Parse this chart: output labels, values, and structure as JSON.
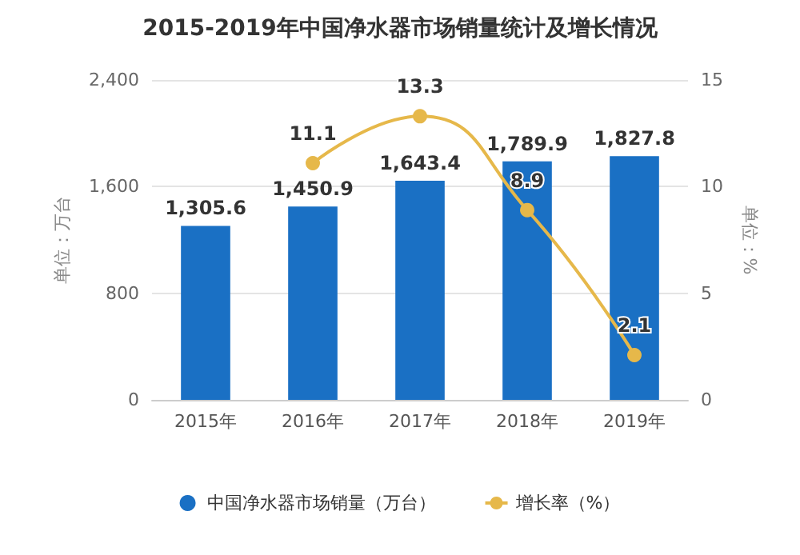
{
  "chart_data": {
    "type": "bar",
    "title": "2015-2019年中国净水器市场销量统计及增长情况",
    "categories": [
      "2015年",
      "2016年",
      "2017年",
      "2018年",
      "2019年"
    ],
    "series": [
      {
        "name": "中国净水器市场销量（万台）",
        "color": "#1a70c4",
        "values": [
          1305.6,
          1450.9,
          1643.4,
          1789.9,
          1827.8
        ],
        "value_labels": [
          "1,305.6",
          "1,450.9",
          "1,643.4",
          "1,789.9",
          "1,827.8"
        ]
      },
      {
        "name": "增长率（%）",
        "type": "line",
        "axis": "y2",
        "color": "#e6b84a",
        "values": [
          null,
          11.1,
          13.3,
          8.9,
          2.1
        ],
        "value_labels": [
          null,
          "11.1",
          "13.3",
          "8.9",
          "2.1"
        ],
        "marker": "circle"
      }
    ],
    "ylabel": "单位：万台",
    "y2label": "单位：%",
    "ylim": [
      0,
      2400
    ],
    "yticks": [
      0,
      800,
      {
        "value": 1600,
        "label": "1,600"
      },
      {
        "value": 2400,
        "label": "2,400"
      }
    ],
    "y2lim": [
      0,
      15
    ],
    "y2ticks": [
      0,
      5,
      10,
      15
    ],
    "grid": "y",
    "legend": "bottom"
  }
}
